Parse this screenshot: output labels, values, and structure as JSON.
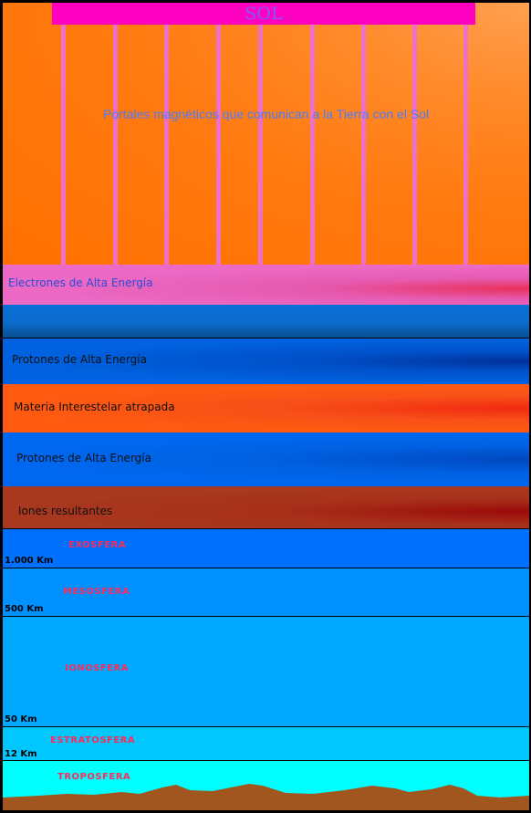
{
  "sun": {
    "label": "SOL"
  },
  "portals": {
    "label": "Portales magnéticos que comunican a la Tierra con el Sol"
  },
  "bands": {
    "electrons": "Electrones de Alta Energía",
    "protons_upper": "Protones de Alta Energía",
    "interstellar": "Materia Interestelar atrapada",
    "protons_lower": "Protones de Alta Energía",
    "ions": "Iones resultantes"
  },
  "atmosphere": {
    "exosphere": {
      "name": "EXOSFERA",
      "altitude": "1.000 Km"
    },
    "mesosphere": {
      "name": "MESOSFERA",
      "altitude": "500 Km"
    },
    "ionosphere": {
      "name": "IONOSFERA",
      "altitude": "50 Km"
    },
    "stratosphere": {
      "name": "ESTRATOSFERA",
      "altitude": "12 Km"
    },
    "troposphere": {
      "name": "TROPOSFERA"
    }
  },
  "colors": {
    "sun_bar": "#ff00c0",
    "portal_lines": "#ef70c8",
    "exosphere": "#0070ff",
    "mesosphere": "#0090ff",
    "ionosphere": "#00a8ff",
    "stratosphere": "#00c8ff",
    "troposphere": "#00ffff",
    "ground": "#a0561e"
  }
}
